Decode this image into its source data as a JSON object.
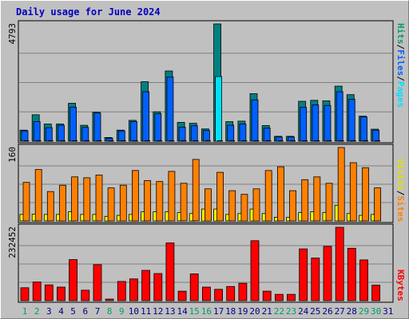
{
  "title": "Daily usage for June 2024",
  "colors": {
    "pages": "#008080",
    "files": "#0060ff",
    "hits": "#00a060",
    "visits": "#ffff00",
    "sites": "#ff8000",
    "kbytes": "#ff0000",
    "weekend_day": "#00a060",
    "weekday": "#000080"
  },
  "legends": {
    "top": {
      "pages": "Pages",
      "files": "Files",
      "hits": "Hits",
      "sep": "/"
    },
    "mid": {
      "sites": "Sites",
      "visits": "Visits",
      "sep": "/"
    },
    "bot": {
      "kbytes": "KBytes"
    }
  },
  "chart_data": [
    {
      "type": "bar",
      "panel": "hits-files-pages",
      "ymax_label": "4793",
      "ylim": [
        0,
        4793
      ],
      "categories": [
        "1",
        "2",
        "3",
        "4",
        "5",
        "6",
        "7",
        "8",
        "9",
        "10",
        "11",
        "12",
        "13",
        "14",
        "15",
        "16",
        "17",
        "18",
        "19",
        "20",
        "21",
        "22",
        "23",
        "24",
        "25",
        "26",
        "27",
        "28",
        "29",
        "30",
        "31"
      ],
      "series": [
        {
          "name": "Hits",
          "values": [
            450,
            1080,
            700,
            700,
            1550,
            650,
            1180,
            150,
            450,
            850,
            2430,
            1200,
            2870,
            770,
            730,
            500,
            4793,
            800,
            820,
            1940,
            640,
            200,
            200,
            1630,
            1670,
            1650,
            2250,
            1900,
            1020,
            490,
            1
          ]
        },
        {
          "name": "Files",
          "values": [
            420,
            800,
            550,
            650,
            1390,
            560,
            1150,
            120,
            420,
            800,
            2020,
            1120,
            2620,
            570,
            630,
            440,
            2640,
            650,
            700,
            1690,
            530,
            170,
            170,
            1380,
            1480,
            1460,
            2020,
            1710,
            990,
            450,
            1
          ]
        },
        {
          "name": "Pages",
          "values": [
            20,
            20,
            20,
            20,
            20,
            20,
            20,
            20,
            20,
            20,
            20,
            20,
            20,
            20,
            20,
            20,
            20,
            20,
            20,
            20,
            20,
            20,
            20,
            20,
            20,
            20,
            20,
            20,
            20,
            20,
            0
          ]
        }
      ]
    },
    {
      "type": "bar",
      "panel": "visits-sites",
      "ymax_label": "160",
      "ylim": [
        0,
        160
      ],
      "categories": [
        "1",
        "2",
        "3",
        "4",
        "5",
        "6",
        "7",
        "8",
        "9",
        "10",
        "11",
        "12",
        "13",
        "14",
        "15",
        "16",
        "17",
        "18",
        "19",
        "20",
        "21",
        "22",
        "23",
        "24",
        "25",
        "26",
        "27",
        "28",
        "29",
        "30",
        "31"
      ],
      "series": [
        {
          "name": "Visits",
          "values": [
            14,
            15,
            14,
            14,
            20,
            14,
            14,
            10,
            12,
            14,
            20,
            20,
            20,
            18,
            16,
            26,
            26,
            14,
            16,
            26,
            16,
            8,
            8,
            18,
            20,
            18,
            34,
            16,
            12,
            14,
            0
          ]
        },
        {
          "name": "Sites",
          "values": [
            84,
            112,
            64,
            78,
            96,
            94,
            100,
            72,
            78,
            110,
            88,
            86,
            108,
            82,
            134,
            70,
            106,
            66,
            58,
            70,
            110,
            118,
            66,
            90,
            96,
            82,
            160,
            127,
            116,
            72,
            0
          ]
        }
      ]
    },
    {
      "type": "bar",
      "panel": "kbytes",
      "ymax_label": "232452",
      "ylim": [
        0,
        232452
      ],
      "categories": [
        "1",
        "2",
        "3",
        "4",
        "5",
        "6",
        "7",
        "8",
        "9",
        "10",
        "11",
        "12",
        "13",
        "14",
        "15",
        "16",
        "17",
        "18",
        "19",
        "20",
        "21",
        "22",
        "23",
        "24",
        "25",
        "26",
        "27",
        "28",
        "29",
        "30",
        "31"
      ],
      "series": [
        {
          "name": "KBytes",
          "values": [
            41000,
            59000,
            50000,
            43000,
            130000,
            33000,
            114000,
            5000,
            61000,
            69000,
            96000,
            86000,
            183000,
            30000,
            85000,
            43000,
            36000,
            45000,
            55000,
            190000,
            30000,
            20000,
            20000,
            164000,
            135000,
            172000,
            232452,
            166000,
            129000,
            49000,
            0
          ]
        }
      ]
    }
  ],
  "x_axis": {
    "labels": [
      "1",
      "2",
      "3",
      "4",
      "5",
      "6",
      "7",
      "8",
      "9",
      "10",
      "11",
      "12",
      "13",
      "14",
      "15",
      "16",
      "17",
      "18",
      "19",
      "20",
      "21",
      "22",
      "23",
      "24",
      "25",
      "26",
      "27",
      "28",
      "29",
      "30",
      "31"
    ],
    "weekend": [
      1,
      2,
      8,
      9,
      15,
      16,
      22,
      23,
      29,
      30
    ]
  }
}
